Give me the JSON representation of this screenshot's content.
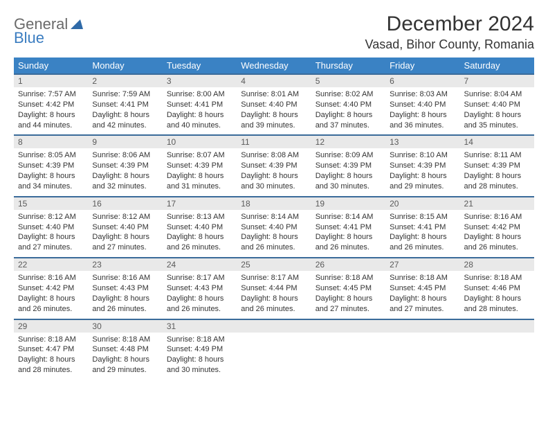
{
  "logo": {
    "word1": "General",
    "word2": "Blue"
  },
  "colors": {
    "header_bg": "#3a82c4",
    "strip_bg": "#e9e9e9",
    "strip_border": "#3a6b9a",
    "logo_gray": "#6a6a6a",
    "logo_blue": "#3a7cc0"
  },
  "month_title": "December 2024",
  "location": "Vasad, Bihor County, Romania",
  "day_headers": [
    "Sunday",
    "Monday",
    "Tuesday",
    "Wednesday",
    "Thursday",
    "Friday",
    "Saturday"
  ],
  "weeks": [
    [
      {
        "n": "1",
        "sr": "7:57 AM",
        "ss": "4:42 PM",
        "dl": "8 hours and 44 minutes."
      },
      {
        "n": "2",
        "sr": "7:59 AM",
        "ss": "4:41 PM",
        "dl": "8 hours and 42 minutes."
      },
      {
        "n": "3",
        "sr": "8:00 AM",
        "ss": "4:41 PM",
        "dl": "8 hours and 40 minutes."
      },
      {
        "n": "4",
        "sr": "8:01 AM",
        "ss": "4:40 PM",
        "dl": "8 hours and 39 minutes."
      },
      {
        "n": "5",
        "sr": "8:02 AM",
        "ss": "4:40 PM",
        "dl": "8 hours and 37 minutes."
      },
      {
        "n": "6",
        "sr": "8:03 AM",
        "ss": "4:40 PM",
        "dl": "8 hours and 36 minutes."
      },
      {
        "n": "7",
        "sr": "8:04 AM",
        "ss": "4:40 PM",
        "dl": "8 hours and 35 minutes."
      }
    ],
    [
      {
        "n": "8",
        "sr": "8:05 AM",
        "ss": "4:39 PM",
        "dl": "8 hours and 34 minutes."
      },
      {
        "n": "9",
        "sr": "8:06 AM",
        "ss": "4:39 PM",
        "dl": "8 hours and 32 minutes."
      },
      {
        "n": "10",
        "sr": "8:07 AM",
        "ss": "4:39 PM",
        "dl": "8 hours and 31 minutes."
      },
      {
        "n": "11",
        "sr": "8:08 AM",
        "ss": "4:39 PM",
        "dl": "8 hours and 30 minutes."
      },
      {
        "n": "12",
        "sr": "8:09 AM",
        "ss": "4:39 PM",
        "dl": "8 hours and 30 minutes."
      },
      {
        "n": "13",
        "sr": "8:10 AM",
        "ss": "4:39 PM",
        "dl": "8 hours and 29 minutes."
      },
      {
        "n": "14",
        "sr": "8:11 AM",
        "ss": "4:39 PM",
        "dl": "8 hours and 28 minutes."
      }
    ],
    [
      {
        "n": "15",
        "sr": "8:12 AM",
        "ss": "4:40 PM",
        "dl": "8 hours and 27 minutes."
      },
      {
        "n": "16",
        "sr": "8:12 AM",
        "ss": "4:40 PM",
        "dl": "8 hours and 27 minutes."
      },
      {
        "n": "17",
        "sr": "8:13 AM",
        "ss": "4:40 PM",
        "dl": "8 hours and 26 minutes."
      },
      {
        "n": "18",
        "sr": "8:14 AM",
        "ss": "4:40 PM",
        "dl": "8 hours and 26 minutes."
      },
      {
        "n": "19",
        "sr": "8:14 AM",
        "ss": "4:41 PM",
        "dl": "8 hours and 26 minutes."
      },
      {
        "n": "20",
        "sr": "8:15 AM",
        "ss": "4:41 PM",
        "dl": "8 hours and 26 minutes."
      },
      {
        "n": "21",
        "sr": "8:16 AM",
        "ss": "4:42 PM",
        "dl": "8 hours and 26 minutes."
      }
    ],
    [
      {
        "n": "22",
        "sr": "8:16 AM",
        "ss": "4:42 PM",
        "dl": "8 hours and 26 minutes."
      },
      {
        "n": "23",
        "sr": "8:16 AM",
        "ss": "4:43 PM",
        "dl": "8 hours and 26 minutes."
      },
      {
        "n": "24",
        "sr": "8:17 AM",
        "ss": "4:43 PM",
        "dl": "8 hours and 26 minutes."
      },
      {
        "n": "25",
        "sr": "8:17 AM",
        "ss": "4:44 PM",
        "dl": "8 hours and 26 minutes."
      },
      {
        "n": "26",
        "sr": "8:18 AM",
        "ss": "4:45 PM",
        "dl": "8 hours and 27 minutes."
      },
      {
        "n": "27",
        "sr": "8:18 AM",
        "ss": "4:45 PM",
        "dl": "8 hours and 27 minutes."
      },
      {
        "n": "28",
        "sr": "8:18 AM",
        "ss": "4:46 PM",
        "dl": "8 hours and 28 minutes."
      }
    ],
    [
      {
        "n": "29",
        "sr": "8:18 AM",
        "ss": "4:47 PM",
        "dl": "8 hours and 28 minutes."
      },
      {
        "n": "30",
        "sr": "8:18 AM",
        "ss": "4:48 PM",
        "dl": "8 hours and 29 minutes."
      },
      {
        "n": "31",
        "sr": "8:18 AM",
        "ss": "4:49 PM",
        "dl": "8 hours and 30 minutes."
      },
      {
        "empty": true
      },
      {
        "empty": true
      },
      {
        "empty": true
      },
      {
        "empty": true
      }
    ]
  ],
  "labels": {
    "sunrise": "Sunrise:",
    "sunset": "Sunset:",
    "daylight": "Daylight:"
  }
}
